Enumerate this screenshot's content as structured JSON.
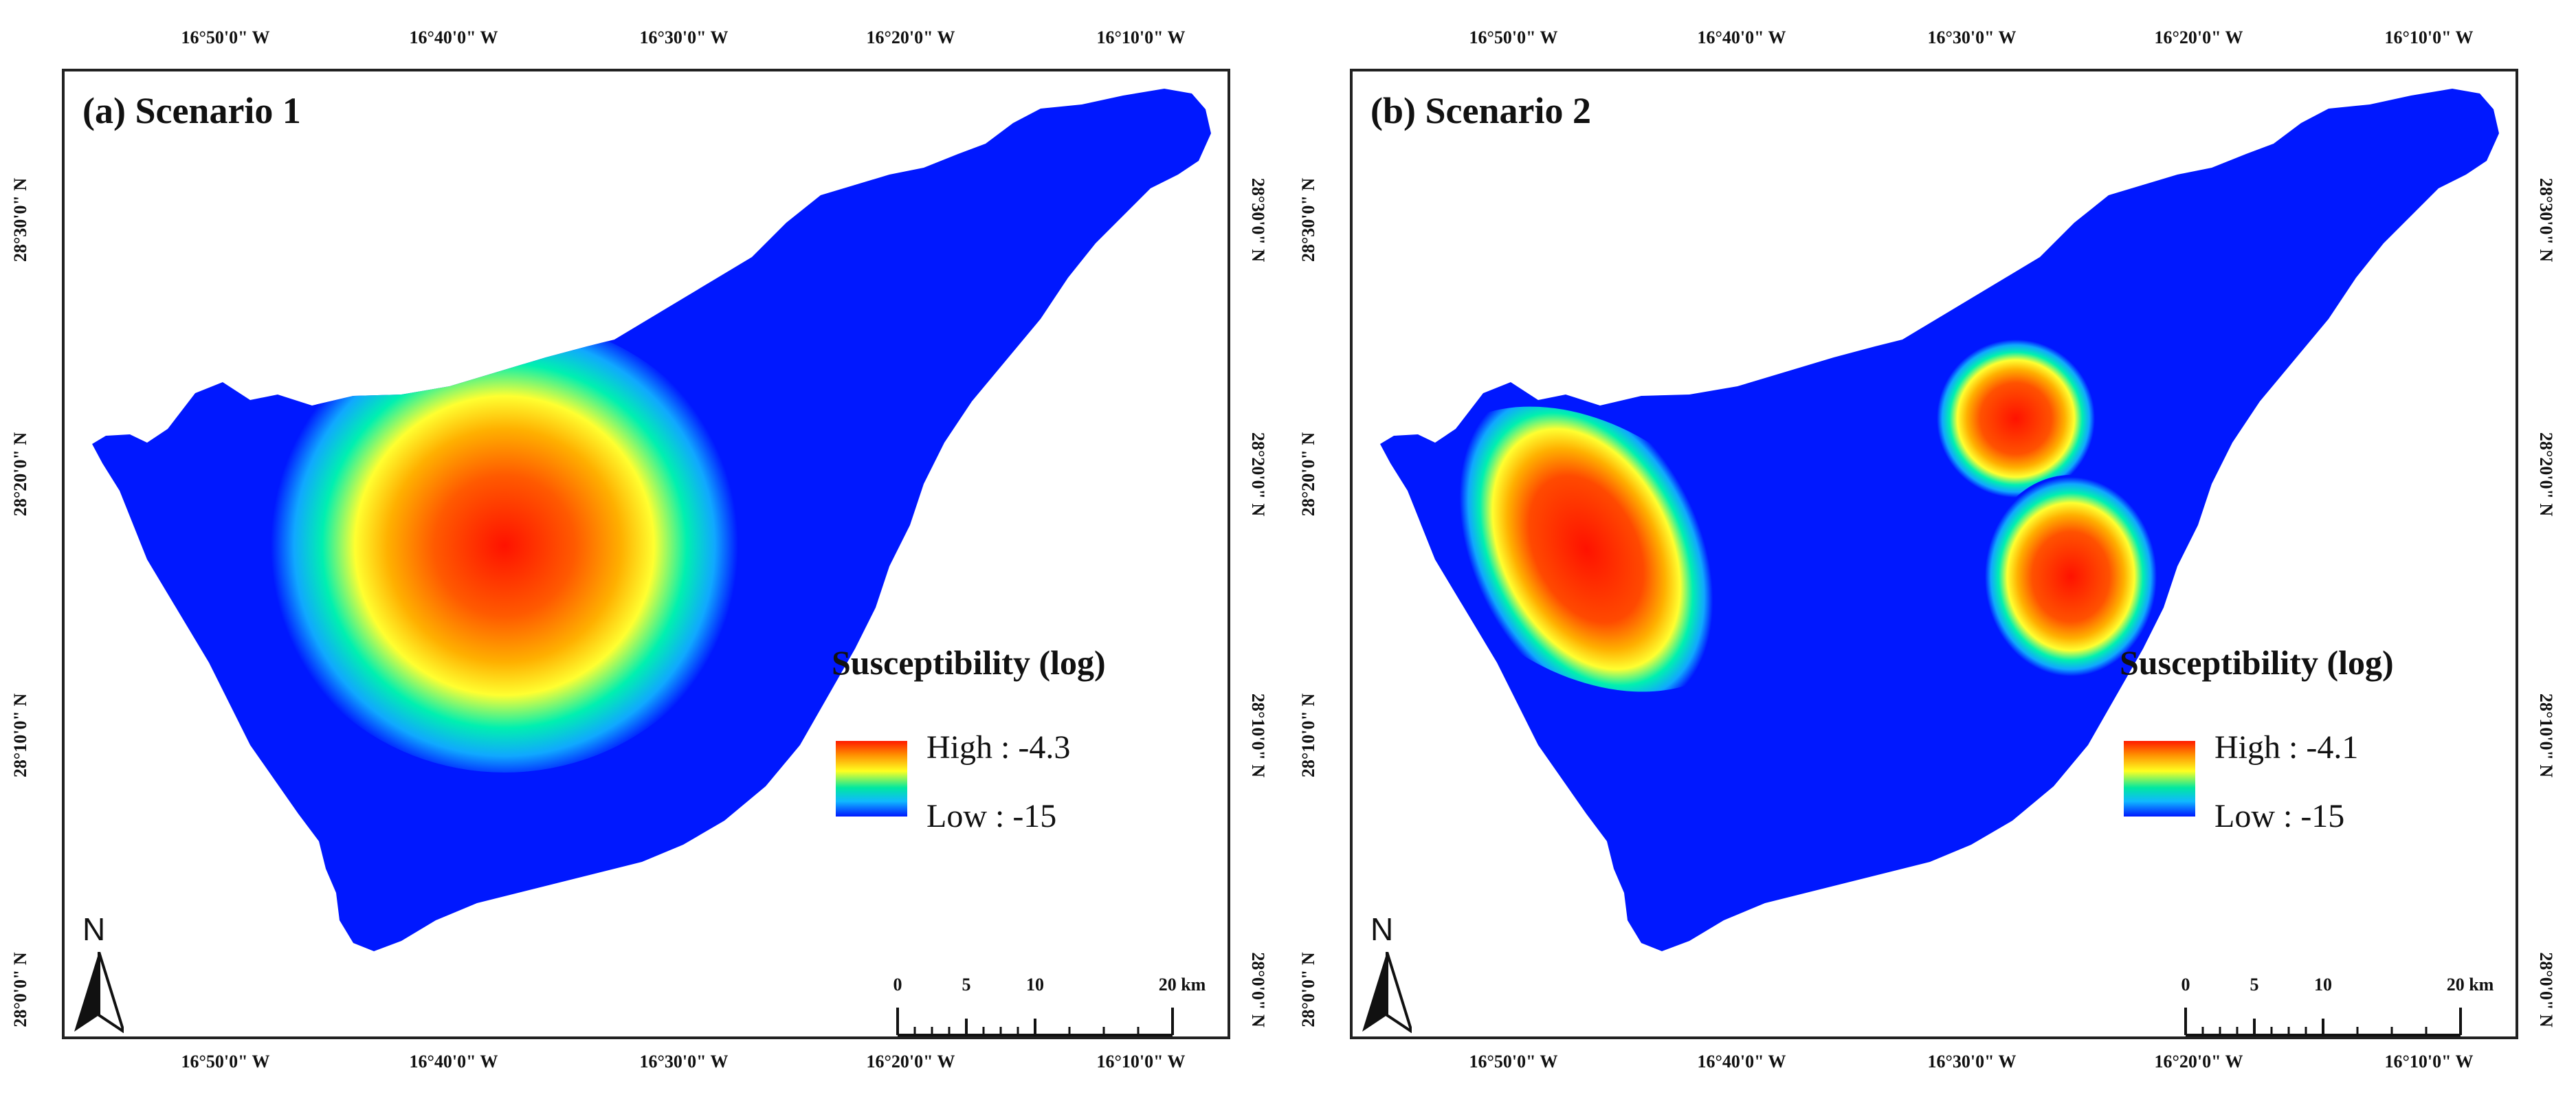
{
  "panels": [
    {
      "title": "(a) Scenario 1",
      "legend": {
        "title": "Susceptibility (log)",
        "high_label": "High : -4.3",
        "low_label": "Low : -15"
      },
      "hotspots": [
        {
          "description": "single large hotspot over central island",
          "intensity": 1.0
        }
      ]
    },
    {
      "title": "(b) Scenario 2",
      "legend": {
        "title": "Susceptibility (log)",
        "high_label": "High : -4.1",
        "low_label": "Low : -15"
      },
      "hotspots": [
        {
          "description": "western elongated hotspot",
          "intensity": 1.0
        },
        {
          "description": "northern hotspot near coast",
          "intensity": 1.0
        },
        {
          "description": "central-east hotspot",
          "intensity": 1.0
        }
      ]
    }
  ],
  "axes": {
    "longitude_labels": [
      "16°50'0\" W",
      "16°40'0\" W",
      "16°30'0\" W",
      "16°20'0\" W",
      "16°10'0\" W"
    ],
    "latitude_labels": [
      "28°30'0\" N",
      "28°20'0\" N",
      "28°10'0\" N",
      "28°0'0\" N"
    ]
  },
  "north_arrow": {
    "label": "N"
  },
  "scale_bar": {
    "labels": [
      "0",
      "5",
      "10",
      "20 km"
    ]
  },
  "colors": {
    "low": "#0018ff",
    "mid_low": "#10b8ff",
    "mid": "#00e8a0",
    "mid_high": "#ffff20",
    "high_orange": "#ff8c00",
    "high": "#ff1a00"
  }
}
